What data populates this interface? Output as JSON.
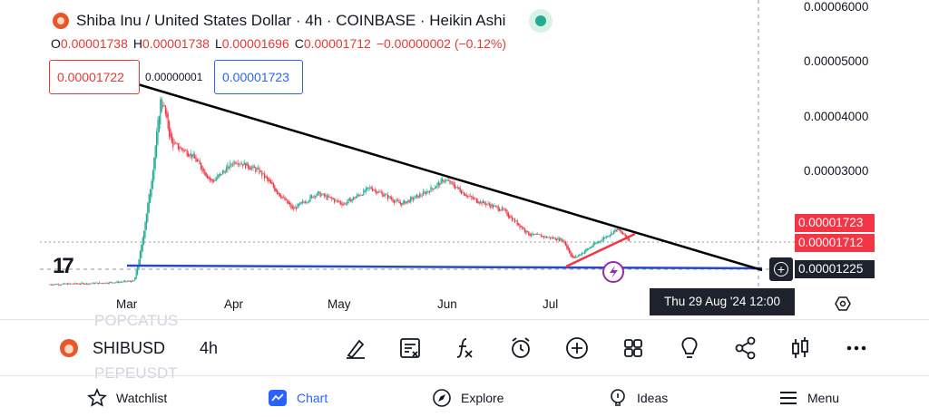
{
  "header": {
    "title": "Shiba Inu / United States Dollar · 4h · COINBASE · Heikin Ashi",
    "ohlc": {
      "o_label": "O",
      "o_value": "0.00001738",
      "h_label": "H",
      "h_value": "0.00001738",
      "l_label": "L",
      "l_value": "0.00001696",
      "c_label": "C",
      "c_value": "0.00001712",
      "change": "−0.00000002 (−0.12%)"
    }
  },
  "order_boxes": {
    "sell_price": "0.00001722",
    "spread": "0.00000001",
    "buy_price": "0.00001723"
  },
  "y_axis": {
    "ticks": [
      "0.00006000",
      "0.00005000",
      "0.00004000",
      "0.00003000"
    ],
    "tags": {
      "ask": "0.00001723",
      "last": "0.00001712",
      "crosshair": "0.00001225"
    }
  },
  "x_axis": {
    "ticks": [
      "Mar",
      "Apr",
      "May",
      "Jun",
      "Jul"
    ],
    "crosshair_time": "Thu 29 Aug '24   12:00"
  },
  "ghost_symbols": {
    "above": "POPCATUS",
    "below": "PEPEUSDT"
  },
  "toolbar": {
    "symbol": "SHIBUSD",
    "interval": "4h",
    "icons": [
      "draw-icon",
      "notes-icon",
      "indicators-icon",
      "alert-icon",
      "add-icon",
      "layout-icon",
      "ideas-bulb-icon",
      "share-icon",
      "chart-type-icon",
      "more-icon"
    ]
  },
  "nav": {
    "watchlist": "Watchlist",
    "chart": "Chart",
    "explore": "Explore",
    "ideas": "Ideas",
    "menu": "Menu"
  },
  "colors": {
    "up": "#22ab94",
    "down": "#f23645",
    "accent": "#2962ff",
    "trendline": "#000000",
    "support": "#2949c2"
  },
  "chart_data": {
    "type": "candlestick-heikin-ashi",
    "symbol": "SHIBUSD",
    "interval": "4h",
    "y_range": [
      9e-06,
      6.1e-05
    ],
    "path_points": [
      [
        "2024-02-01",
        9.4e-06
      ],
      [
        "2024-02-15",
        9.6e-06
      ],
      [
        "2024-02-26",
        1e-05
      ],
      [
        "2024-02-28",
        1.6e-05
      ],
      [
        "2024-03-02",
        2.8e-05
      ],
      [
        "2024-03-05",
        4.4e-05
      ],
      [
        "2024-03-08",
        3.5e-05
      ],
      [
        "2024-03-14",
        3.3e-05
      ],
      [
        "2024-03-20",
        2.8e-05
      ],
      [
        "2024-03-27",
        3.2e-05
      ],
      [
        "2024-04-03",
        3e-05
      ],
      [
        "2024-04-13",
        2.3e-05
      ],
      [
        "2024-04-20",
        2.6e-05
      ],
      [
        "2024-04-28",
        2.4e-05
      ],
      [
        "2024-05-06",
        2.7e-05
      ],
      [
        "2024-05-15",
        2.4e-05
      ],
      [
        "2024-05-22",
        2.6e-05
      ],
      [
        "2024-05-28",
        2.85e-05
      ],
      [
        "2024-06-05",
        2.5e-05
      ],
      [
        "2024-06-14",
        2.3e-05
      ],
      [
        "2024-06-22",
        1.85e-05
      ],
      [
        "2024-07-02",
        1.75e-05
      ],
      [
        "2024-07-05",
        1.4e-05
      ],
      [
        "2024-07-12",
        1.7e-05
      ],
      [
        "2024-07-18",
        1.95e-05
      ],
      [
        "2024-07-22",
        1.72e-05
      ]
    ],
    "drawings": {
      "trendline": {
        "from": [
          "2024-03-05",
          4.5e-05
        ],
        "to": [
          "2024-08-29",
          1.22e-05
        ]
      },
      "support_line": {
        "from": [
          "2024-02-28",
          1.25e-05
        ],
        "to": [
          "2024-08-29",
          1.22e-05
        ]
      },
      "rising_line": {
        "from": [
          "2024-07-05",
          1.25e-05
        ],
        "to": [
          "2024-07-26",
          1.85e-05
        ]
      }
    },
    "last_price": 1.712e-05,
    "crosshair_price": 1.225e-05,
    "x_ticks": [
      "Mar",
      "Apr",
      "May",
      "Jun",
      "Jul"
    ],
    "grid": false
  }
}
